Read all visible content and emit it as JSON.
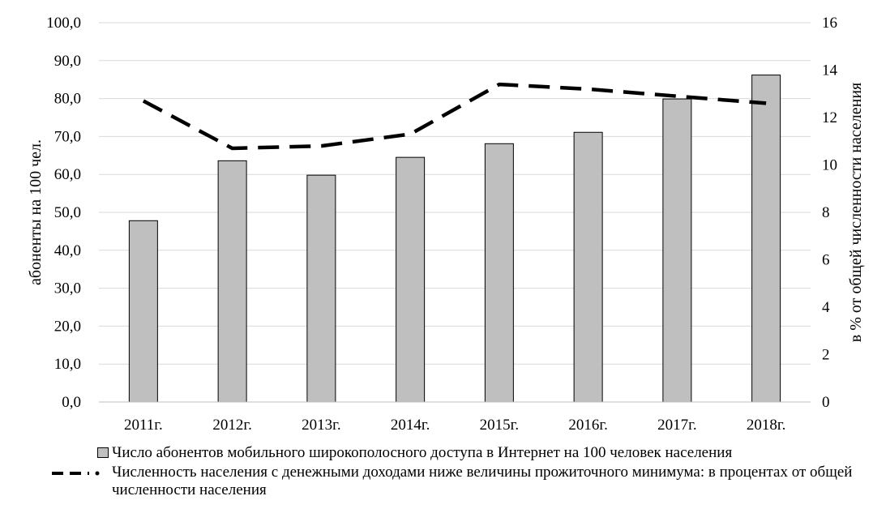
{
  "chart_data": {
    "type": "bar+line",
    "categories": [
      "2011г.",
      "2012г.",
      "2013г.",
      "2014г.",
      "2015г.",
      "2016г.",
      "2017г.",
      "2018г."
    ],
    "series": [
      {
        "name": "Число абонентов мобильного широкополосного доступа в Интернет на 100 человек населения",
        "type": "bar",
        "axis": "left",
        "color": "#bfbfbf",
        "values": [
          47.8,
          63.6,
          59.8,
          64.5,
          68.1,
          71.1,
          79.9,
          86.2
        ]
      },
      {
        "name": "Численность населения с денежными доходами ниже величины прожиточного минимума: в процентах от общей численности населения",
        "type": "line",
        "axis": "right",
        "style": "dashed",
        "color": "#000000",
        "values": [
          12.7,
          10.7,
          10.8,
          11.3,
          13.4,
          13.2,
          12.9,
          12.6
        ]
      }
    ],
    "ylabel_left": "абоненты на 100 чел.",
    "ylabel_right": "в % от общей численности населения",
    "ylim_left": [
      0,
      100
    ],
    "ylim_right": [
      0,
      16
    ],
    "left_ticks": [
      "0,0",
      "10,0",
      "20,0",
      "30,0",
      "40,0",
      "50,0",
      "60,0",
      "70,0",
      "80,0",
      "90,0",
      "100,0"
    ],
    "right_ticks": [
      "0",
      "2",
      "4",
      "6",
      "8",
      "10",
      "12",
      "14",
      "16"
    ],
    "grid": true,
    "legend_position": "bottom"
  }
}
